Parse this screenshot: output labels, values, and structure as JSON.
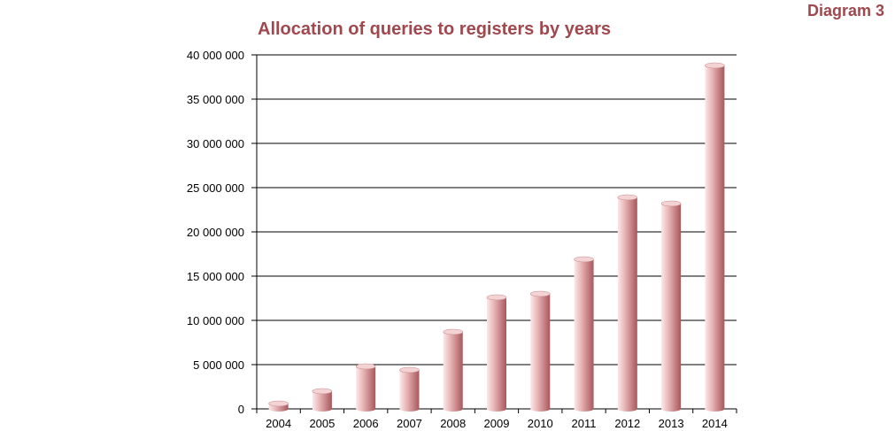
{
  "header": {
    "diagram_label": "Diagram 3"
  },
  "chart_data": {
    "type": "bar",
    "title": "Allocation of queries to registers by years",
    "xlabel": "",
    "ylabel": "",
    "categories": [
      "2004",
      "2005",
      "2006",
      "2007",
      "2008",
      "2009",
      "2010",
      "2011",
      "2012",
      "2013",
      "2014"
    ],
    "values": [
      600000,
      2000000,
      4800000,
      4400000,
      8700000,
      12600000,
      13000000,
      16900000,
      23900000,
      23200000,
      38800000
    ],
    "ylim": [
      0,
      40000000
    ],
    "yticks": [
      0,
      5000000,
      10000000,
      15000000,
      20000000,
      25000000,
      30000000,
      35000000,
      40000000
    ],
    "ytick_labels": [
      "0",
      "5 000 000",
      "10 000 000",
      "15 000 000",
      "20 000 000",
      "25 000 000",
      "30 000 000",
      "35 000 000",
      "40 000 000"
    ],
    "grid": true,
    "legend": "none",
    "bar_style": "cylinder",
    "colors": {
      "bar_dark": "#a8575c",
      "bar_light": "#fbe9e9",
      "top_face": "#f4d3d4",
      "title": "#a0484e",
      "grid": "#000000"
    }
  }
}
